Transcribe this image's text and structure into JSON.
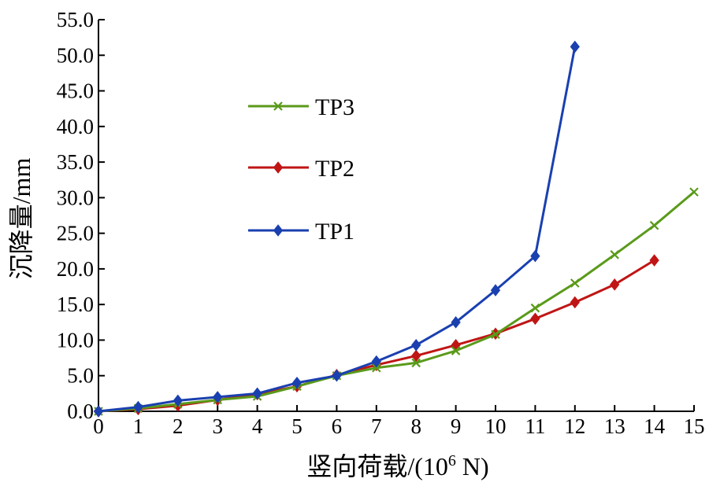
{
  "chart_data": {
    "type": "line",
    "title": "",
    "xlabel": "竖向荷载/(10",
    "xlabel_sup": "6",
    "xlabel_suffix": " N)",
    "ylabel": "沉降量/mm",
    "xlim": [
      0,
      15
    ],
    "ylim": [
      0,
      55
    ],
    "x_ticks": [
      "0",
      "1",
      "2",
      "3",
      "4",
      "5",
      "6",
      "7",
      "8",
      "9",
      "10",
      "11",
      "12",
      "13",
      "14",
      "15"
    ],
    "y_ticks": [
      "0.0",
      "5.0",
      "10.0",
      "15.0",
      "20.0",
      "25.0",
      "30.0",
      "35.0",
      "40.0",
      "45.0",
      "50.0",
      "55.0"
    ],
    "grid": false,
    "legend_position": "upper-left-inside",
    "series": [
      {
        "name": "TP3",
        "color": "#5a9a1a",
        "marker": "x",
        "x": [
          0,
          1,
          2,
          3,
          4,
          5,
          6,
          7,
          8,
          9,
          10,
          11,
          12,
          13,
          14,
          15
        ],
        "y": [
          0,
          0.4,
          1.0,
          1.6,
          2.1,
          3.5,
          5.0,
          6.1,
          6.8,
          8.5,
          10.8,
          14.5,
          18.0,
          22.0,
          26.1,
          30.8
        ]
      },
      {
        "name": "TP2",
        "color": "#c01515",
        "marker": "diamond",
        "x": [
          0,
          1,
          2,
          3,
          4,
          5,
          6,
          7,
          8,
          9,
          10,
          11,
          12,
          13,
          14
        ],
        "y": [
          0,
          0.3,
          0.8,
          1.6,
          2.4,
          3.5,
          5.1,
          6.5,
          7.8,
          9.3,
          10.9,
          13.0,
          15.3,
          17.8,
          21.2
        ]
      },
      {
        "name": "TP1",
        "color": "#1a40b0",
        "marker": "diamond",
        "x": [
          0,
          1,
          2,
          3,
          4,
          5,
          6,
          7,
          8,
          9,
          10,
          11,
          12
        ],
        "y": [
          0,
          0.6,
          1.5,
          2.0,
          2.5,
          4.0,
          5.0,
          7.0,
          9.3,
          12.5,
          17.0,
          21.8,
          51.2
        ]
      }
    ]
  }
}
